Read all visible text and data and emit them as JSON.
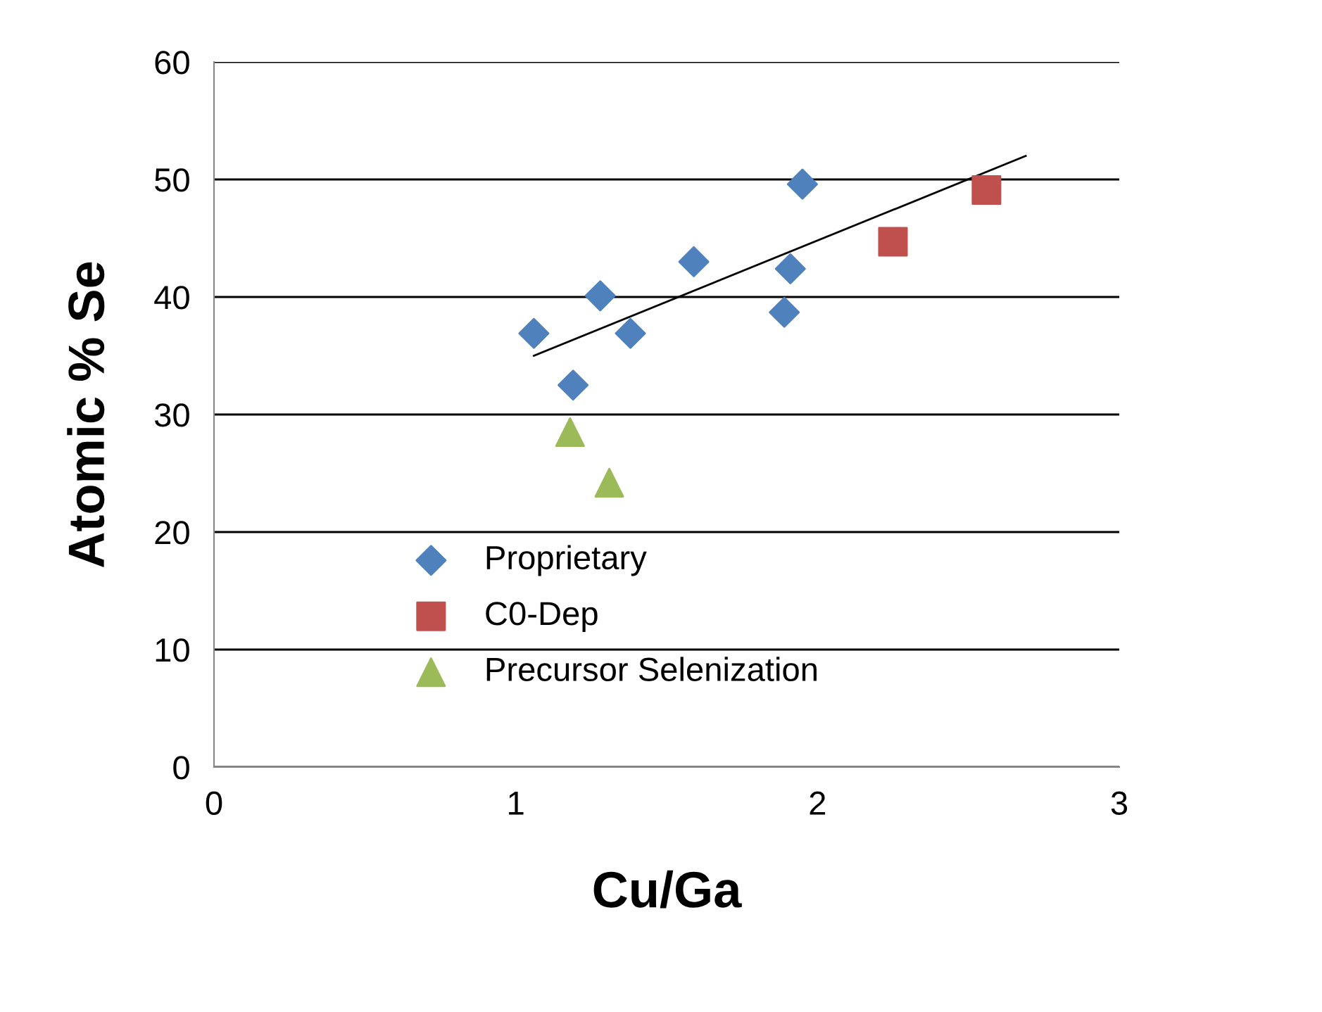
{
  "chart_data": {
    "type": "scatter",
    "xlabel": "Cu/Ga",
    "ylabel": "Atomic % Se",
    "xlim": [
      0,
      3
    ],
    "xticks": [
      0,
      1,
      2,
      3
    ],
    "ylim": [
      0,
      60
    ],
    "yticks": [
      0,
      10,
      20,
      30,
      40,
      50,
      60
    ],
    "grid": "y",
    "legend": "bottom left",
    "series": [
      {
        "name": "Proprietary",
        "color": "#4f81bd",
        "marker": "diamond",
        "x": [
          1.06,
          1.19,
          1.28,
          1.38,
          1.59,
          1.89,
          1.91,
          1.95
        ],
        "values": [
          36.9,
          32.5,
          40.1,
          36.9,
          43.0,
          38.7,
          42.4,
          49.6
        ]
      },
      {
        "name": "C0-Dep",
        "color": "#c0504d",
        "marker": "square",
        "x": [
          2.25,
          2.56
        ],
        "values": [
          44.7,
          49.1
        ]
      },
      {
        "name": "Precursor Selenization",
        "color": "#9bbb59",
        "marker": "triangle",
        "x": [
          1.18,
          1.31
        ],
        "values": [
          28.5,
          24.2
        ]
      },
      {
        "type": "line",
        "color": "#000000",
        "marker": "none",
        "x": [
          1.06,
          2.69
        ],
        "values": [
          35.0,
          52.0
        ]
      }
    ]
  }
}
